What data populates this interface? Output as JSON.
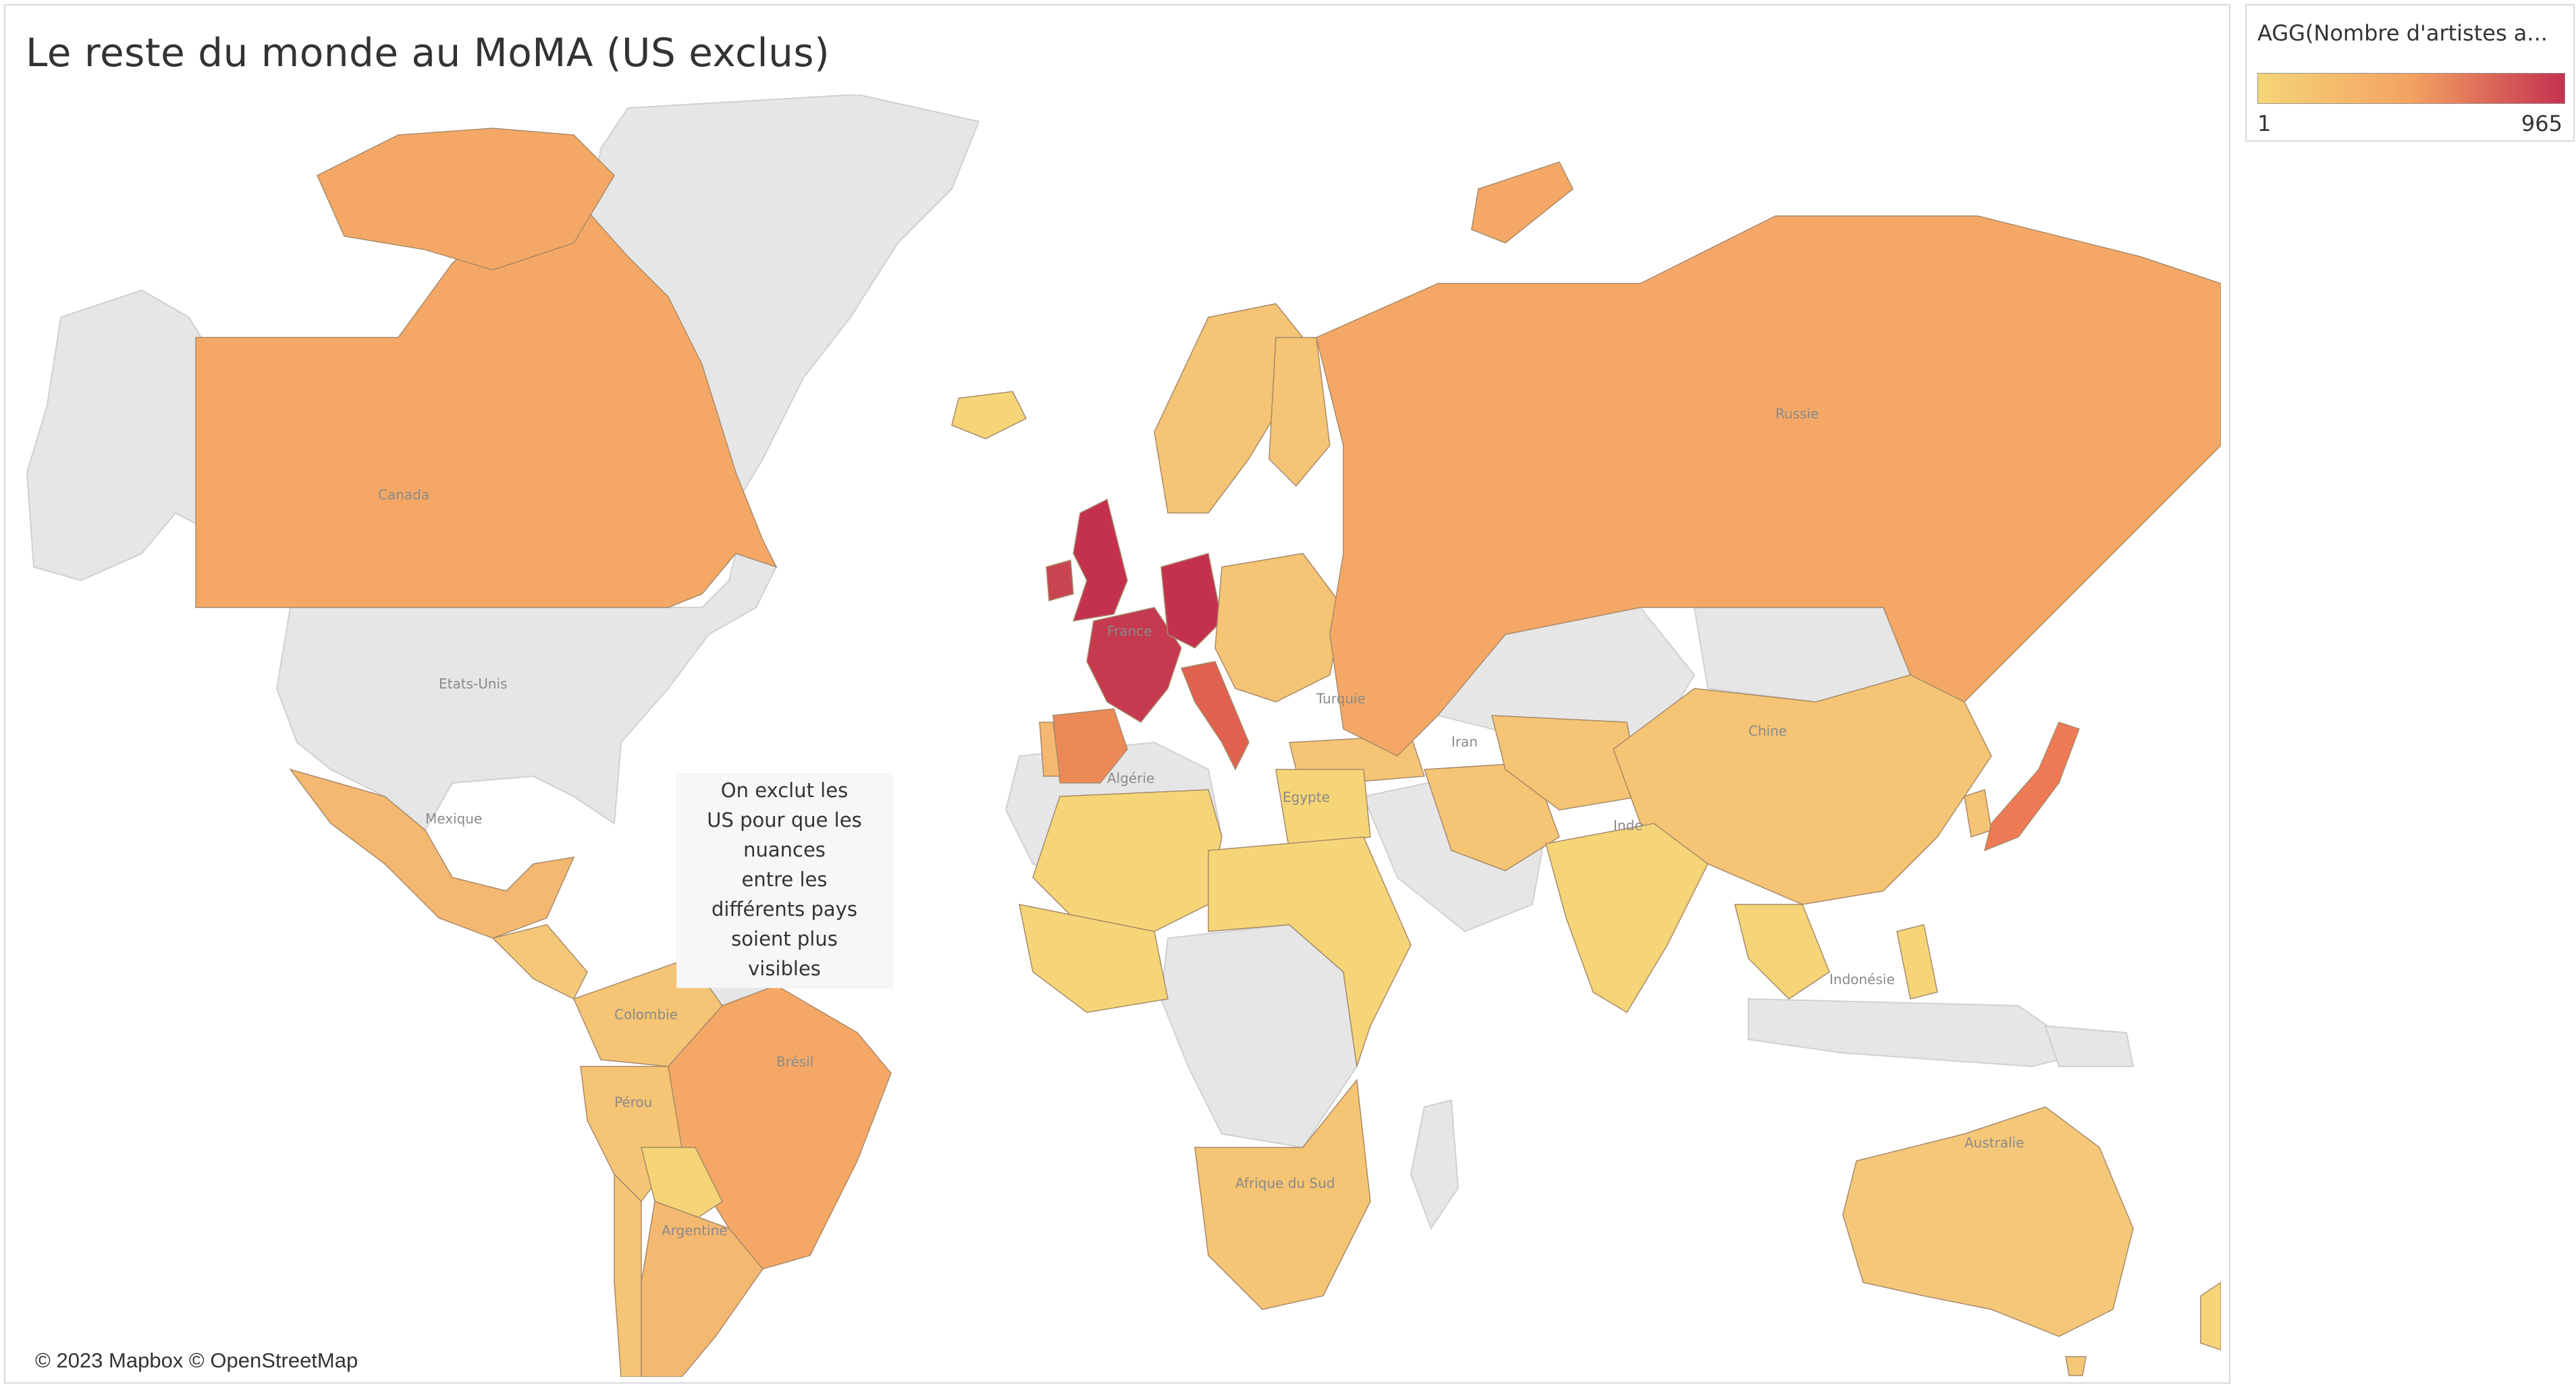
{
  "title": "Le reste du monde au MoMA (US exclus)",
  "legend": {
    "title": "AGG(Nombre d'artistes a...",
    "min": "1",
    "max": "965",
    "color_low": "#f5d577",
    "color_mid": "#f3a262",
    "color_high": "#c4314f"
  },
  "annotation": {
    "lines": [
      "On exclut les",
      "US pour que les",
      "nuances",
      "entre les",
      "différents pays",
      "soient plus",
      "visibles"
    ]
  },
  "attribution": "© 2023 Mapbox © OpenStreetMap",
  "map": {
    "base_color": "#e6e6e6",
    "ocean_color": "#ffffff",
    "country_labels": [
      "Canada",
      "Etats-Unis",
      "Mexique",
      "Colombie",
      "Pérou",
      "Brésil",
      "Argentine",
      "Russie",
      "Chine",
      "Inde",
      "Iran",
      "Turquie",
      "Algérie",
      "Egypte",
      "France",
      "Indonésie",
      "Australie",
      "Afrique du Sud"
    ],
    "countries": [
      {
        "name": "Canada",
        "level": "low-mid"
      },
      {
        "name": "Etats-Unis",
        "level": "excluded"
      },
      {
        "name": "Mexique",
        "level": "low-mid"
      },
      {
        "name": "Brésil",
        "level": "low-mid"
      },
      {
        "name": "Argentine",
        "level": "low-mid"
      },
      {
        "name": "Russie",
        "level": "low-mid"
      },
      {
        "name": "Chine",
        "level": "low"
      },
      {
        "name": "Inde",
        "level": "low"
      },
      {
        "name": "Australie",
        "level": "low"
      },
      {
        "name": "Royaume-Uni",
        "level": "high"
      },
      {
        "name": "France",
        "level": "high"
      },
      {
        "name": "Allemagne",
        "level": "high"
      },
      {
        "name": "Italie",
        "level": "mid-high"
      },
      {
        "name": "Japon",
        "level": "mid"
      },
      {
        "name": "Espagne",
        "level": "mid"
      }
    ]
  }
}
